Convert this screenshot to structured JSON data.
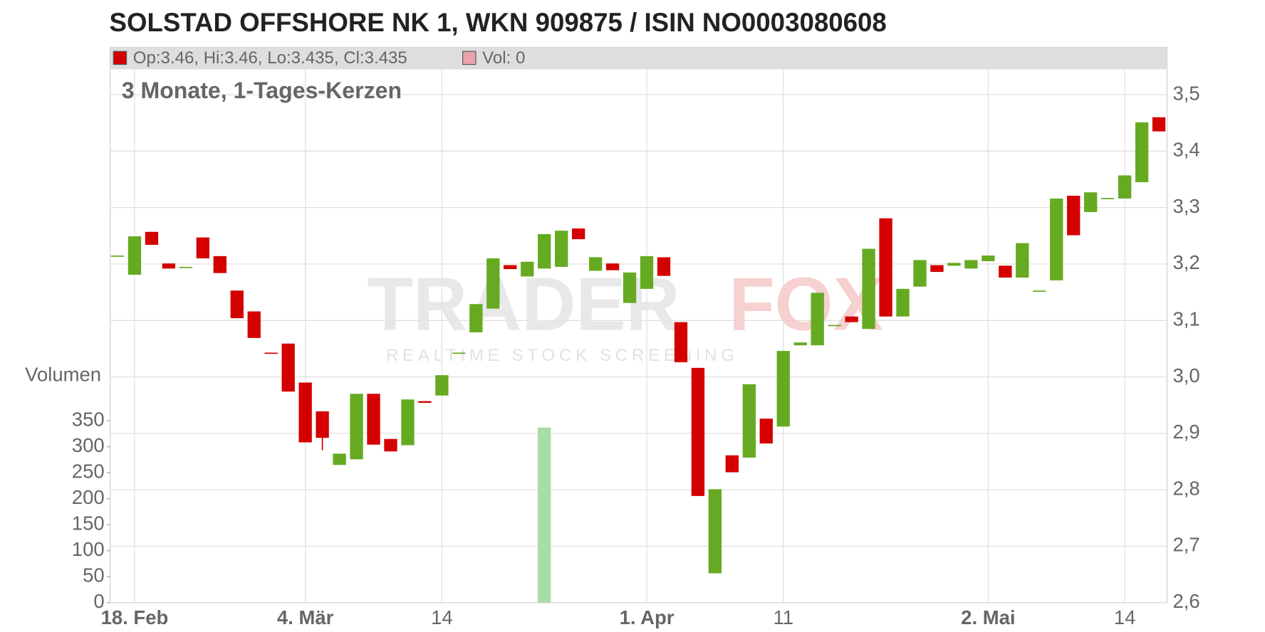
{
  "chart_data": {
    "type": "candlestick",
    "title": "SOLSTAD OFFSHORE NK 1, WKN 909875 / ISIN NO0003080608",
    "subtitle": "3 Monate, 1-Tages-Kerzen",
    "legend": [
      {
        "label": "Op:3.46, Hi:3.46, Lo:3.435, Cl:3.435",
        "color": "#d40000"
      },
      {
        "label": "Vol: 0",
        "color": "#e8a3ab"
      }
    ],
    "watermark": [
      "TRADER",
      "FOX",
      "REALTIME STOCK SCREENING"
    ],
    "categories": [
      null,
      "18. Feb",
      null,
      null,
      null,
      null,
      null,
      null,
      null,
      null,
      null,
      "4. Mär",
      null,
      null,
      null,
      null,
      null,
      null,
      null,
      "14",
      null,
      null,
      null,
      null,
      null,
      null,
      null,
      null,
      null,
      null,
      null,
      "1. Apr",
      null,
      null,
      null,
      null,
      null,
      null,
      null,
      "11",
      null,
      null,
      null,
      null,
      null,
      null,
      null,
      null,
      null,
      null,
      null,
      "2. Mai",
      null,
      null,
      null,
      null,
      null,
      null,
      null,
      "14",
      null,
      null
    ],
    "open": [
      3.214,
      3.181,
      3.257,
      3.201,
      3.194,
      3.247,
      3.214,
      3.153,
      3.116,
      3.043,
      3.059,
      2.99,
      2.939,
      2.844,
      2.854,
      2.97,
      2.89,
      2.879,
      2.957,
      2.967,
      3.042,
      3.079,
      3.121,
      3.198,
      3.178,
      3.192,
      3.195,
      3.263,
      3.188,
      3.201,
      3.131,
      3.156,
      3.212,
      3.097,
      3.016,
      2.652,
      2.861,
      2.857,
      2.926,
      2.912,
      3.056,
      3.056,
      3.091,
      3.107,
      3.085,
      3.281,
      3.107,
      3.16,
      3.198,
      3.197,
      3.192,
      3.205,
      3.197,
      3.176,
      3.152,
      3.171,
      3.321,
      3.292,
      3.316,
      3.316,
      3.345,
      3.46
    ],
    "high": [
      3.215,
      3.249,
      3.257,
      3.201,
      3.195,
      3.247,
      3.214,
      3.153,
      3.116,
      3.043,
      3.059,
      2.99,
      2.939,
      2.864,
      2.97,
      2.97,
      2.89,
      2.96,
      2.957,
      3.003,
      3.043,
      3.129,
      3.21,
      3.198,
      3.204,
      3.253,
      3.259,
      3.263,
      3.212,
      3.201,
      3.185,
      3.214,
      3.212,
      3.097,
      3.016,
      2.801,
      2.861,
      2.987,
      2.926,
      3.046,
      3.061,
      3.149,
      3.092,
      3.107,
      3.227,
      3.281,
      3.156,
      3.207,
      3.198,
      3.202,
      3.207,
      3.215,
      3.197,
      3.237,
      3.153,
      3.316,
      3.321,
      3.327,
      3.317,
      3.357,
      3.451,
      3.46
    ],
    "low": [
      3.214,
      3.181,
      3.234,
      3.192,
      3.194,
      3.21,
      3.184,
      3.104,
      3.069,
      3.042,
      2.974,
      2.884,
      2.87,
      2.844,
      2.854,
      2.88,
      2.868,
      2.879,
      2.954,
      2.967,
      3.042,
      3.079,
      3.121,
      3.191,
      3.178,
      3.192,
      3.195,
      3.244,
      3.188,
      3.189,
      3.131,
      3.156,
      3.179,
      3.026,
      2.789,
      2.652,
      2.831,
      2.857,
      2.882,
      2.912,
      3.056,
      3.056,
      3.091,
      3.097,
      3.085,
      3.107,
      3.107,
      3.16,
      3.186,
      3.197,
      3.192,
      3.205,
      3.176,
      3.176,
      3.152,
      3.171,
      3.251,
      3.292,
      3.316,
      3.316,
      3.345,
      3.435
    ],
    "close": [
      3.215,
      3.249,
      3.234,
      3.192,
      3.195,
      3.21,
      3.184,
      3.104,
      3.069,
      3.042,
      2.974,
      2.884,
      2.892,
      2.864,
      2.97,
      2.88,
      2.868,
      2.96,
      2.954,
      3.003,
      3.043,
      3.129,
      3.21,
      3.191,
      3.204,
      3.253,
      3.259,
      3.244,
      3.212,
      3.189,
      3.185,
      3.214,
      3.179,
      3.026,
      2.789,
      2.801,
      2.831,
      2.987,
      2.882,
      3.046,
      3.061,
      3.149,
      3.092,
      3.097,
      3.227,
      3.107,
      3.156,
      3.207,
      3.186,
      3.202,
      3.207,
      3.215,
      3.176,
      3.237,
      3.153,
      3.316,
      3.251,
      3.327,
      3.317,
      3.357,
      3.451,
      3.435
    ],
    "up_color": "#66aa22",
    "down_color": "#d40000",
    "ylim": [
      2.6,
      3.584
    ],
    "yticks": [
      {
        "value": 2.6,
        "label": "2,6"
      },
      {
        "value": 2.7,
        "label": "2,7"
      },
      {
        "value": 2.8,
        "label": "2,8"
      },
      {
        "value": 2.9,
        "label": "2,9"
      },
      {
        "value": 3.0,
        "label": "3,0"
      },
      {
        "value": 3.1,
        "label": "3,1"
      },
      {
        "value": 3.2,
        "label": "3,2"
      },
      {
        "value": 3.3,
        "label": "3,3"
      },
      {
        "value": 3.4,
        "label": "3,4"
      },
      {
        "value": 3.5,
        "label": "3,5"
      }
    ],
    "grid": true,
    "volume": {
      "name": "Volumen",
      "color": "#a8dca8",
      "values": [
        0,
        0,
        0,
        0,
        0,
        0,
        0,
        0,
        0,
        0,
        0,
        0,
        0,
        0,
        0,
        0,
        0,
        0,
        0,
        0,
        0,
        0,
        0,
        0,
        0,
        337,
        0,
        0,
        0,
        0,
        0,
        0,
        0,
        0,
        0,
        0,
        0,
        0,
        0,
        0,
        0,
        0,
        0,
        0,
        0,
        0,
        0,
        0,
        0,
        0,
        0,
        0,
        0,
        0,
        0,
        0,
        0,
        0,
        0,
        0,
        0,
        0
      ],
      "ylim": [
        0,
        350
      ],
      "yticks": [
        0,
        50,
        100,
        150,
        200,
        250,
        300,
        350
      ]
    }
  }
}
